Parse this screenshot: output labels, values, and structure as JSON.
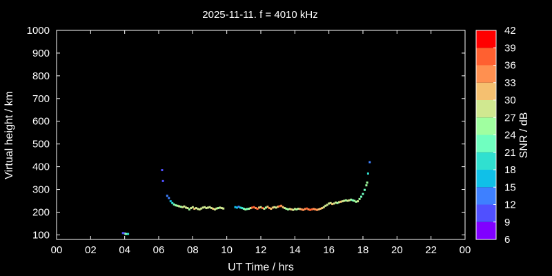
{
  "chart_data": {
    "type": "scatter",
    "title": "2025-11-11. f = 4010 kHz",
    "xlabel": "UT Time / hrs",
    "ylabel": "Virtual height / km",
    "xlim": [
      0,
      24
    ],
    "ylim": [
      80,
      1000
    ],
    "x_ticks": [
      "00",
      "02",
      "04",
      "06",
      "08",
      "10",
      "12",
      "14",
      "16",
      "18",
      "20",
      "22",
      "00"
    ],
    "y_ticks": [
      "100",
      "200",
      "300",
      "400",
      "500",
      "600",
      "700",
      "800",
      "900",
      "1000"
    ],
    "colorbar": {
      "label": "SNR / dB",
      "ticks": [
        "6",
        "9",
        "12",
        "15",
        "18",
        "21",
        "24",
        "27",
        "30",
        "33",
        "36",
        "39",
        "42"
      ],
      "range": [
        6,
        42
      ],
      "colors": [
        "#8000ff",
        "#5050ff",
        "#3e80ff",
        "#10c0e8",
        "#30e0d0",
        "#70ffc0",
        "#a0ffa0",
        "#d0e890",
        "#f5c070",
        "#ff9050",
        "#ff6030",
        "#ff0000"
      ]
    },
    "grid": false,
    "points": [
      [
        3.9,
        108,
        10
      ],
      [
        4.0,
        107,
        11
      ],
      [
        4.05,
        104,
        25
      ],
      [
        4.1,
        104,
        22
      ],
      [
        4.2,
        104,
        20
      ],
      [
        6.2,
        385,
        10
      ],
      [
        6.25,
        337,
        11
      ],
      [
        6.5,
        272,
        13
      ],
      [
        6.6,
        262,
        14
      ],
      [
        6.7,
        248,
        17
      ],
      [
        6.8,
        240,
        20
      ],
      [
        6.9,
        234,
        23
      ],
      [
        7.0,
        230,
        25
      ],
      [
        7.1,
        228,
        26
      ],
      [
        7.2,
        226,
        27
      ],
      [
        7.3,
        224,
        26
      ],
      [
        7.4,
        222,
        28
      ],
      [
        7.5,
        225,
        27
      ],
      [
        7.6,
        220,
        28
      ],
      [
        7.7,
        218,
        27
      ],
      [
        7.8,
        212,
        24
      ],
      [
        7.9,
        218,
        27
      ],
      [
        8.0,
        222,
        29
      ],
      [
        8.1,
        215,
        30
      ],
      [
        8.2,
        218,
        28
      ],
      [
        8.3,
        214,
        27
      ],
      [
        8.4,
        212,
        28
      ],
      [
        8.5,
        216,
        28
      ],
      [
        8.6,
        220,
        27
      ],
      [
        8.7,
        222,
        29
      ],
      [
        8.8,
        218,
        28
      ],
      [
        8.9,
        220,
        27
      ],
      [
        9.0,
        222,
        28
      ],
      [
        9.1,
        218,
        29
      ],
      [
        9.2,
        215,
        30
      ],
      [
        9.3,
        212,
        28
      ],
      [
        9.4,
        216,
        27
      ],
      [
        9.5,
        218,
        26
      ],
      [
        9.6,
        220,
        29
      ],
      [
        9.7,
        218,
        28
      ],
      [
        9.8,
        216,
        27
      ],
      [
        10.5,
        222,
        15
      ],
      [
        10.6,
        220,
        17
      ],
      [
        10.7,
        224,
        14
      ],
      [
        10.8,
        220,
        18
      ],
      [
        10.9,
        218,
        20
      ],
      [
        11.0,
        215,
        22
      ],
      [
        11.1,
        212,
        24
      ],
      [
        11.2,
        214,
        23
      ],
      [
        11.3,
        215,
        26
      ],
      [
        11.4,
        218,
        27
      ],
      [
        11.5,
        220,
        38
      ],
      [
        11.6,
        222,
        36
      ],
      [
        11.7,
        218,
        34
      ],
      [
        11.8,
        215,
        38
      ],
      [
        11.9,
        220,
        30
      ],
      [
        12.0,
        222,
        28
      ],
      [
        12.1,
        218,
        36
      ],
      [
        12.2,
        215,
        27
      ],
      [
        12.3,
        220,
        26
      ],
      [
        12.4,
        224,
        30
      ],
      [
        12.5,
        218,
        33
      ],
      [
        12.6,
        215,
        32
      ],
      [
        12.7,
        220,
        30
      ],
      [
        12.8,
        222,
        28
      ],
      [
        12.9,
        220,
        27
      ],
      [
        13.0,
        224,
        30
      ],
      [
        13.1,
        226,
        36
      ],
      [
        13.2,
        228,
        33
      ],
      [
        13.3,
        222,
        30
      ],
      [
        13.4,
        218,
        27
      ],
      [
        13.5,
        215,
        25
      ],
      [
        13.6,
        212,
        26
      ],
      [
        13.7,
        214,
        28
      ],
      [
        13.8,
        212,
        30
      ],
      [
        13.9,
        210,
        28
      ],
      [
        14.0,
        214,
        27
      ],
      [
        14.1,
        212,
        26
      ],
      [
        14.2,
        215,
        28
      ],
      [
        14.3,
        214,
        30
      ],
      [
        14.4,
        212,
        33
      ],
      [
        14.5,
        210,
        34
      ],
      [
        14.6,
        214,
        33
      ],
      [
        14.7,
        216,
        36
      ],
      [
        14.8,
        212,
        34
      ],
      [
        14.9,
        210,
        38
      ],
      [
        15.0,
        212,
        36
      ],
      [
        15.1,
        214,
        33
      ],
      [
        15.2,
        212,
        35
      ],
      [
        15.3,
        210,
        33
      ],
      [
        15.4,
        212,
        30
      ],
      [
        15.5,
        215,
        32
      ],
      [
        15.6,
        218,
        30
      ],
      [
        15.7,
        222,
        28
      ],
      [
        15.8,
        228,
        27
      ],
      [
        15.9,
        232,
        28
      ],
      [
        16.0,
        238,
        29
      ],
      [
        16.1,
        240,
        27
      ],
      [
        16.2,
        236,
        30
      ],
      [
        16.3,
        238,
        28
      ],
      [
        16.4,
        242,
        27
      ],
      [
        16.5,
        240,
        26
      ],
      [
        16.6,
        244,
        28
      ],
      [
        16.7,
        246,
        30
      ],
      [
        16.8,
        248,
        27
      ],
      [
        16.9,
        250,
        28
      ],
      [
        17.0,
        252,
        26
      ],
      [
        17.1,
        250,
        28
      ],
      [
        17.2,
        252,
        27
      ],
      [
        17.3,
        255,
        24
      ],
      [
        17.4,
        252,
        23
      ],
      [
        17.5,
        250,
        24
      ],
      [
        17.6,
        246,
        25
      ],
      [
        17.7,
        248,
        27
      ],
      [
        17.8,
        258,
        26
      ],
      [
        17.9,
        268,
        23
      ],
      [
        18.0,
        280,
        22
      ],
      [
        18.1,
        298,
        23
      ],
      [
        18.2,
        318,
        25
      ],
      [
        18.25,
        330,
        26
      ],
      [
        18.3,
        370,
        18
      ],
      [
        18.4,
        420,
        12
      ]
    ]
  }
}
